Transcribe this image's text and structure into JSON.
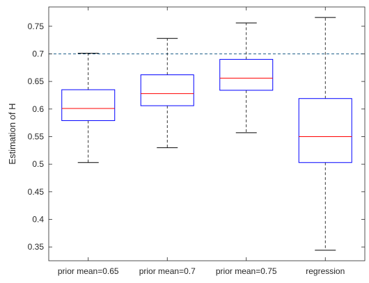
{
  "chart_data": {
    "type": "boxplot",
    "title": "",
    "xlabel": "",
    "ylabel": "Estimation of H",
    "ylim": [
      0.325,
      0.785
    ],
    "yticks": [
      "0.35",
      "0.4",
      "0.45",
      "0.5",
      "0.55",
      "0.6",
      "0.65",
      "0.7",
      "0.75"
    ],
    "categories": [
      "prior mean=0.65",
      "prior mean=0.7",
      "prior mean=0.75",
      "regression"
    ],
    "boxes": [
      {
        "whisker_low": 0.503,
        "q1": 0.579,
        "median": 0.601,
        "q3": 0.635,
        "whisker_high": 0.701
      },
      {
        "whisker_low": 0.53,
        "q1": 0.606,
        "median": 0.628,
        "q3": 0.662,
        "whisker_high": 0.728
      },
      {
        "whisker_low": 0.557,
        "q1": 0.634,
        "median": 0.656,
        "q3": 0.69,
        "whisker_high": 0.756
      },
      {
        "whisker_low": 0.344,
        "q1": 0.503,
        "median": 0.55,
        "q3": 0.619,
        "whisker_high": 0.766
      }
    ],
    "reference_line": {
      "y": 0.7,
      "style": "dashed"
    },
    "grid": false,
    "colors": {
      "box": "#0000ff",
      "median": "#ff0000",
      "whisker": "#000000",
      "reference": "#1f5f8b",
      "axis": "#262626"
    }
  }
}
